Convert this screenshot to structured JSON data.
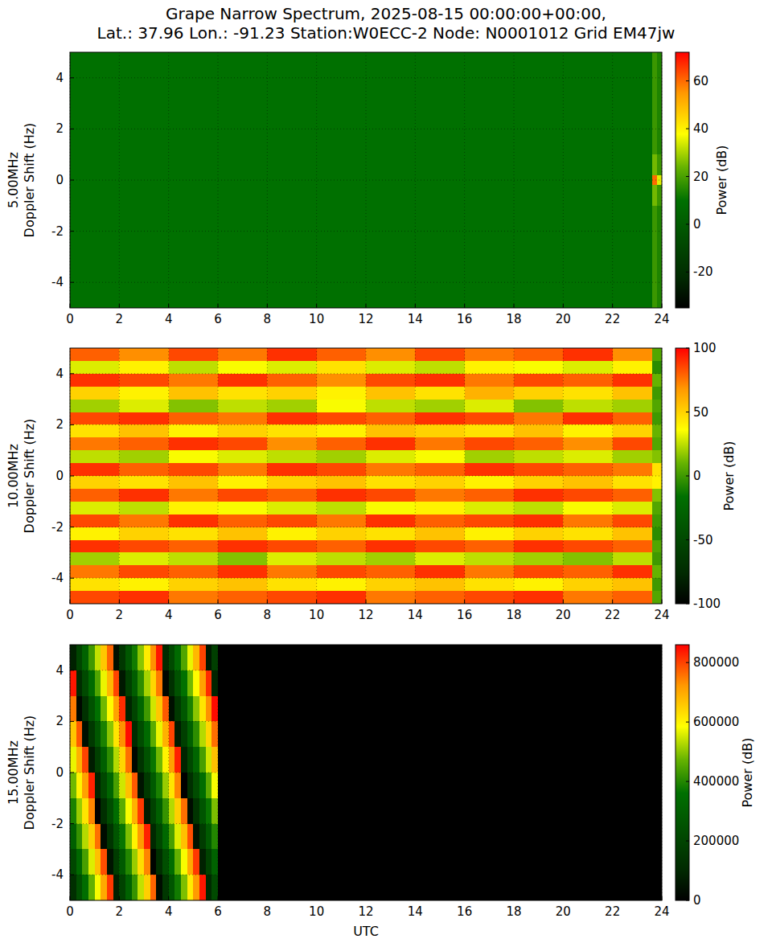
{
  "title": [
    "Grape Narrow Spectrum, 2025-08-15 00:00:00+00:00,",
    "Lat.: 37.96 Lon.: -91.23 Station:W0ECC-2 Node: N0001012 Grid EM47jw"
  ],
  "chart_data": [
    {
      "type": "heatmap",
      "ylabel": [
        "5.00MHz",
        "Doppler Shift (Hz)"
      ],
      "xlim": [
        0,
        24
      ],
      "xticks": [
        0,
        2,
        4,
        6,
        8,
        10,
        12,
        14,
        16,
        18,
        20,
        22,
        24
      ],
      "ylim": [
        -5,
        5
      ],
      "yticks": [
        -4,
        -2,
        0,
        2,
        4
      ],
      "grid": true,
      "x_edges": [
        0,
        23.6,
        23.8,
        24
      ],
      "y_edges": [
        5,
        1,
        0.2,
        -0.2,
        -1,
        -5
      ],
      "cells": [
        [
          10,
          18,
          14
        ],
        [
          10,
          25,
          18
        ],
        [
          10,
          60,
          35
        ],
        [
          10,
          25,
          18
        ],
        [
          10,
          18,
          14
        ]
      ],
      "colorbar": {
        "label": "Power (dB)",
        "range": [
          -35,
          72
        ],
        "ticks": [
          -20,
          0,
          20,
          40,
          60
        ]
      }
    },
    {
      "type": "heatmap",
      "ylabel": [
        "10.00MHz",
        "Doppler Shift (Hz)"
      ],
      "xlim": [
        0,
        24
      ],
      "xticks": [
        0,
        2,
        4,
        6,
        8,
        10,
        12,
        14,
        16,
        18,
        20,
        22,
        24
      ],
      "ylim": [
        -5,
        5
      ],
      "yticks": [
        -4,
        -2,
        0,
        2,
        4
      ],
      "grid": true,
      "x_edges": [
        0,
        2,
        4,
        6,
        8,
        10,
        12,
        14,
        16,
        18,
        20,
        22,
        23.6,
        24
      ],
      "y_edges": [
        5,
        4.5,
        4,
        3.5,
        3,
        2.5,
        2,
        1.5,
        1,
        0.5,
        0,
        -0.5,
        -1,
        -1.5,
        -2,
        -2.5,
        -3,
        -3.5,
        -4,
        -4.5,
        -5
      ],
      "cells": [
        [
          80,
          70,
          85,
          75,
          90,
          80,
          70,
          85,
          75,
          80,
          90,
          70,
          5
        ],
        [
          30,
          40,
          25,
          35,
          30,
          45,
          30,
          25,
          40,
          35,
          30,
          40,
          -5
        ],
        [
          90,
          85,
          75,
          90,
          80,
          70,
          85,
          90,
          75,
          85,
          80,
          90,
          10
        ],
        [
          50,
          40,
          55,
          45,
          50,
          40,
          55,
          45,
          60,
          50,
          45,
          55,
          0
        ],
        [
          20,
          30,
          15,
          25,
          20,
          35,
          25,
          20,
          30,
          15,
          25,
          20,
          5
        ],
        [
          85,
          90,
          80,
          75,
          90,
          85,
          80,
          90,
          85,
          75,
          90,
          80,
          0
        ],
        [
          45,
          55,
          40,
          50,
          45,
          40,
          55,
          50,
          45,
          55,
          40,
          50,
          10
        ],
        [
          75,
          80,
          90,
          85,
          70,
          80,
          90,
          75,
          85,
          80,
          70,
          85,
          5
        ],
        [
          25,
          20,
          35,
          30,
          25,
          20,
          30,
          35,
          20,
          25,
          30,
          20,
          15
        ],
        [
          90,
          80,
          85,
          75,
          90,
          85,
          75,
          80,
          90,
          85,
          80,
          75,
          45
        ],
        [
          50,
          45,
          55,
          40,
          50,
          55,
          45,
          50,
          40,
          50,
          55,
          45,
          40
        ],
        [
          80,
          90,
          75,
          85,
          80,
          90,
          85,
          75,
          80,
          90,
          85,
          80,
          15
        ],
        [
          30,
          25,
          40,
          35,
          30,
          25,
          35,
          40,
          30,
          25,
          35,
          30,
          5
        ],
        [
          85,
          75,
          90,
          80,
          85,
          75,
          90,
          80,
          85,
          90,
          75,
          85,
          0
        ],
        [
          40,
          50,
          45,
          55,
          40,
          50,
          45,
          55,
          40,
          50,
          45,
          55,
          -5
        ],
        [
          90,
          85,
          80,
          90,
          85,
          80,
          90,
          85,
          80,
          90,
          85,
          80,
          5
        ],
        [
          20,
          30,
          25,
          15,
          30,
          25,
          20,
          30,
          25,
          20,
          15,
          25,
          0
        ],
        [
          75,
          85,
          80,
          90,
          75,
          85,
          80,
          90,
          75,
          85,
          80,
          90,
          10
        ],
        [
          45,
          40,
          50,
          55,
          45,
          40,
          50,
          55,
          45,
          40,
          50,
          55,
          0
        ],
        [
          85,
          90,
          75,
          80,
          85,
          90,
          75,
          80,
          85,
          90,
          75,
          80,
          5
        ]
      ],
      "colorbar": {
        "label": "Power (dB)",
        "range": [
          -100,
          100
        ],
        "ticks": [
          -100,
          -50,
          0,
          50,
          100
        ]
      }
    },
    {
      "type": "heatmap",
      "ylabel": [
        "15.00MHz",
        "Doppler Shift (Hz)"
      ],
      "xlabel": "UTC",
      "xlim": [
        0,
        24
      ],
      "xticks": [
        0,
        2,
        4,
        6,
        8,
        10,
        12,
        14,
        16,
        18,
        20,
        22,
        24
      ],
      "ylim": [
        -5,
        5
      ],
      "yticks": [
        -4,
        -2,
        0,
        2,
        4
      ],
      "grid": true,
      "x_edges": [
        0,
        0.25,
        0.5,
        0.75,
        1,
        1.25,
        1.5,
        1.75,
        2,
        2.25,
        2.5,
        2.75,
        3,
        3.25,
        3.5,
        3.75,
        4,
        4.25,
        4.5,
        4.75,
        5,
        5.25,
        5.5,
        5.75,
        6,
        24
      ],
      "y_edges": [
        5,
        4,
        3,
        2,
        1,
        0,
        -1,
        -2,
        -3,
        -4,
        -5
      ],
      "cells": [
        [
          80000,
          200000,
          310000,
          430000,
          540000,
          660000,
          770000,
          40000,
          150000,
          270000,
          380000,
          500000,
          610000,
          730000,
          840000,
          110000,
          220000,
          340000,
          450000,
          570000,
          680000,
          800000,
          60000,
          180000,
          0
        ],
        [
          840000,
          110000,
          220000,
          340000,
          450000,
          570000,
          680000,
          800000,
          60000,
          180000,
          290000,
          410000,
          520000,
          640000,
          750000,
          20000,
          130000,
          250000,
          360000,
          480000,
          590000,
          710000,
          820000,
          90000,
          0
        ],
        [
          750000,
          20000,
          130000,
          250000,
          360000,
          480000,
          590000,
          710000,
          820000,
          90000,
          200000,
          320000,
          430000,
          550000,
          660000,
          780000,
          40000,
          160000,
          270000,
          390000,
          500000,
          620000,
          730000,
          850000,
          0
        ],
        [
          660000,
          780000,
          40000,
          160000,
          270000,
          390000,
          500000,
          620000,
          730000,
          850000,
          110000,
          230000,
          340000,
          460000,
          570000,
          690000,
          800000,
          70000,
          180000,
          300000,
          410000,
          530000,
          640000,
          760000,
          0
        ],
        [
          570000,
          690000,
          800000,
          70000,
          180000,
          300000,
          410000,
          530000,
          640000,
          760000,
          20000,
          140000,
          250000,
          370000,
          480000,
          600000,
          710000,
          830000,
          90000,
          210000,
          320000,
          440000,
          550000,
          670000,
          0
        ],
        [
          480000,
          600000,
          710000,
          830000,
          90000,
          210000,
          320000,
          440000,
          550000,
          670000,
          780000,
          50000,
          160000,
          280000,
          390000,
          510000,
          620000,
          740000,
          0,
          120000,
          230000,
          350000,
          460000,
          580000,
          0
        ],
        [
          390000,
          510000,
          620000,
          740000,
          0,
          120000,
          230000,
          350000,
          460000,
          580000,
          690000,
          810000,
          70000,
          190000,
          300000,
          420000,
          530000,
          650000,
          760000,
          30000,
          140000,
          260000,
          370000,
          490000,
          0
        ],
        [
          300000,
          420000,
          530000,
          650000,
          760000,
          30000,
          140000,
          260000,
          370000,
          490000,
          600000,
          720000,
          830000,
          100000,
          210000,
          330000,
          440000,
          560000,
          670000,
          790000,
          50000,
          170000,
          280000,
          400000,
          0
        ],
        [
          210000,
          330000,
          440000,
          560000,
          670000,
          790000,
          50000,
          170000,
          280000,
          400000,
          510000,
          630000,
          740000,
          10000,
          120000,
          240000,
          350000,
          470000,
          580000,
          700000,
          810000,
          80000,
          190000,
          310000,
          0
        ],
        [
          120000,
          240000,
          350000,
          470000,
          580000,
          700000,
          810000,
          80000,
          190000,
          310000,
          420000,
          540000,
          650000,
          770000,
          30000,
          150000,
          260000,
          380000,
          490000,
          610000,
          720000,
          840000,
          100000,
          220000,
          0
        ]
      ],
      "colorbar": {
        "label": "Power (dB)",
        "range": [
          0,
          860000
        ],
        "ticks": [
          0,
          200000,
          400000,
          600000,
          800000
        ]
      }
    }
  ]
}
